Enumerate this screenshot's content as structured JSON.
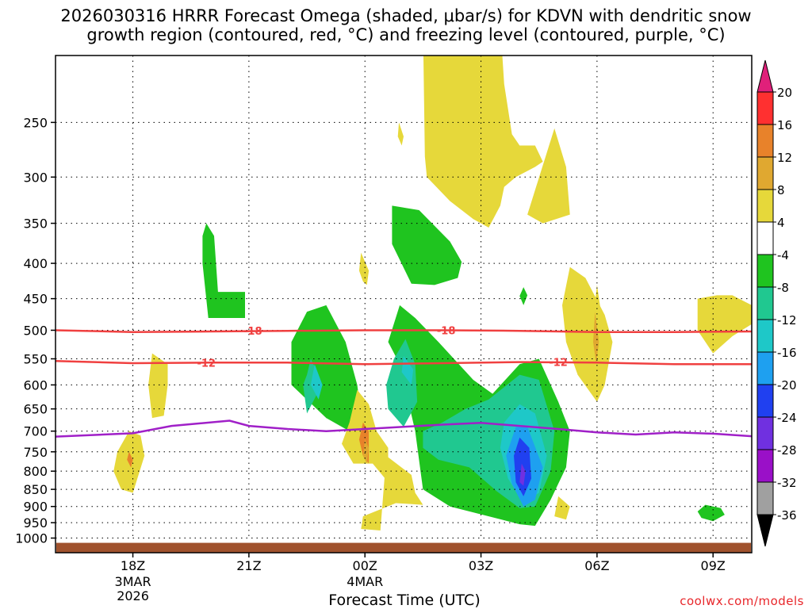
{
  "title": {
    "line1": "2026030316 HRRR Forecast Omega (shaded, μbar/s) for KDVN with dendritic snow",
    "line2": "growth region (contoured, red, °C) and freezing level (contoured, purple, °C)"
  },
  "chart_data": {
    "type": "time-height cross section",
    "xlabel": "Forecast Time (UTC)",
    "ylabel": "",
    "x_ticks": [
      {
        "hour": 2,
        "label": "18Z",
        "sub": [
          "3MAR",
          "2026"
        ]
      },
      {
        "hour": 5,
        "label": "21Z",
        "sub": []
      },
      {
        "hour": 8,
        "label": "00Z",
        "sub": [
          "4MAR"
        ]
      },
      {
        "hour": 11,
        "label": "03Z",
        "sub": []
      },
      {
        "hour": 14,
        "label": "06Z",
        "sub": []
      },
      {
        "hour": 17,
        "label": "09Z",
        "sub": []
      }
    ],
    "xlim_hours": [
      0,
      18
    ],
    "y_scale": "log-pressure",
    "ylim_hpa": [
      1050,
      200
    ],
    "y_ticks": [
      250,
      300,
      350,
      400,
      450,
      500,
      550,
      600,
      650,
      700,
      750,
      800,
      850,
      900,
      950,
      1000
    ],
    "grid": true,
    "surface_color": "#a0522d",
    "colorbar": {
      "labels": [
        20,
        16,
        12,
        8,
        4,
        -4,
        -8,
        -12,
        -16,
        -20,
        -24,
        -28,
        -32,
        -36
      ],
      "colors": [
        "#ff3030",
        "#e8822a",
        "#e0a830",
        "#e6d83a",
        "#ffffff",
        "#1fc41f",
        "#20c890",
        "#1ec8c8",
        "#1ea0f0",
        "#2040f0",
        "#7030e0",
        "#9a10c8",
        "#a0a0a0"
      ],
      "top_arrow_color": "#e0207a",
      "bottom_arrow_color": "#000000"
    },
    "series": [
      {
        "name": "-18",
        "color": "#f04040",
        "hours": [
          0,
          2,
          4,
          6,
          8,
          10,
          12,
          14,
          16,
          18
        ],
        "hpa": [
          500,
          503,
          502,
          501,
          500,
          500,
          501,
          503,
          503,
          502
        ]
      },
      {
        "name": "-12",
        "color": "#f04040",
        "hours": [
          0,
          2,
          4,
          6,
          8,
          10,
          12,
          14,
          16,
          18
        ],
        "hpa": [
          554,
          558,
          557,
          557,
          560,
          558,
          556,
          557,
          560,
          560
        ]
      },
      {
        "name": "",
        "color": "#a020c8",
        "hours": [
          0,
          2,
          3,
          4.5,
          5,
          6,
          7,
          8,
          9,
          10,
          11,
          12,
          13,
          14,
          15,
          16,
          17,
          18
        ],
        "hpa": [
          713,
          705,
          688,
          676,
          688,
          695,
          700,
          695,
          690,
          685,
          681,
          688,
          695,
          703,
          708,
          703,
          706,
          712
        ]
      }
    ],
    "contour_labels": [
      {
        "text": "-18",
        "hour": 5.1,
        "hpa": 501
      },
      {
        "text": "-18",
        "hour": 10.1,
        "hpa": 500
      },
      {
        "text": "-12",
        "hour": 3.9,
        "hpa": 557
      },
      {
        "text": "-12",
        "hour": 13.0,
        "hpa": 556
      }
    ],
    "shaded_regions": [
      {
        "color": "#1fc41f",
        "points": [
          [
            9.6,
            200
          ],
          [
            10.4,
            200
          ],
          [
            10.5,
            210
          ],
          [
            10.2,
            220
          ],
          [
            9.8,
            212
          ]
        ]
      },
      {
        "color": "#1fc41f",
        "points": [
          [
            3.9,
            350
          ],
          [
            4.1,
            365
          ],
          [
            4.2,
            440
          ],
          [
            4.9,
            440
          ],
          [
            4.9,
            480
          ],
          [
            3.95,
            480
          ],
          [
            3.8,
            400
          ],
          [
            3.8,
            365
          ]
        ]
      },
      {
        "color": "#1fc41f",
        "points": [
          [
            8.7,
            330
          ],
          [
            9.4,
            335
          ],
          [
            10.2,
            372
          ],
          [
            10.5,
            398
          ],
          [
            10.4,
            420
          ],
          [
            9.8,
            430
          ],
          [
            9.2,
            428
          ],
          [
            8.7,
            375
          ]
        ]
      },
      {
        "color": "#1fc41f",
        "points": [
          [
            6.5,
            470
          ],
          [
            7.0,
            460
          ],
          [
            7.5,
            520
          ],
          [
            7.8,
            600
          ],
          [
            7.9,
            660
          ],
          [
            7.6,
            700
          ],
          [
            7.0,
            670
          ],
          [
            6.1,
            600
          ],
          [
            6.1,
            520
          ]
        ]
      },
      {
        "color": "#1fc41f",
        "points": [
          [
            8.9,
            460
          ],
          [
            9.3,
            480
          ],
          [
            9.9,
            520
          ],
          [
            10.8,
            590
          ],
          [
            11.3,
            618
          ],
          [
            12.0,
            560
          ],
          [
            12.5,
            550
          ],
          [
            13.0,
            635
          ],
          [
            13.3,
            700
          ],
          [
            13.2,
            790
          ],
          [
            12.8,
            880
          ],
          [
            12.4,
            960
          ],
          [
            12.0,
            955
          ],
          [
            11.2,
            930
          ],
          [
            10.2,
            900
          ],
          [
            9.5,
            850
          ],
          [
            9.3,
            700
          ],
          [
            8.9,
            560
          ],
          [
            8.6,
            520
          ]
        ]
      },
      {
        "color": "#1fc41f",
        "points": [
          [
            12.1,
            433
          ],
          [
            12.2,
            445
          ],
          [
            12.1,
            460
          ],
          [
            12.0,
            446
          ]
        ]
      },
      {
        "color": "#1fc41f",
        "points": [
          [
            16.8,
            895
          ],
          [
            17.2,
            905
          ],
          [
            17.3,
            925
          ],
          [
            17.0,
            945
          ],
          [
            16.7,
            935
          ],
          [
            16.6,
            915
          ]
        ]
      },
      {
        "color": "#20c890",
        "points": [
          [
            9.05,
            515
          ],
          [
            9.3,
            560
          ],
          [
            9.35,
            635
          ],
          [
            9.0,
            690
          ],
          [
            8.6,
            650
          ],
          [
            8.55,
            600
          ],
          [
            8.75,
            550
          ]
        ]
      },
      {
        "color": "#20c890",
        "points": [
          [
            9.5,
            700
          ],
          [
            10.0,
            680
          ],
          [
            10.6,
            650
          ],
          [
            11.2,
            630
          ],
          [
            12.0,
            580
          ],
          [
            12.5,
            590
          ],
          [
            12.9,
            700
          ],
          [
            12.8,
            800
          ],
          [
            12.4,
            900
          ],
          [
            12.0,
            905
          ],
          [
            11.4,
            855
          ],
          [
            10.7,
            790
          ],
          [
            9.9,
            770
          ],
          [
            9.5,
            740
          ]
        ]
      },
      {
        "color": "#20c890",
        "points": [
          [
            6.6,
            550
          ],
          [
            6.8,
            580
          ],
          [
            6.75,
            620
          ],
          [
            6.5,
            660
          ],
          [
            6.4,
            600
          ],
          [
            6.5,
            580
          ]
        ]
      },
      {
        "color": "#1ec8c8",
        "points": [
          [
            9.0,
            545
          ],
          [
            9.25,
            570
          ],
          [
            9.2,
            600
          ],
          [
            8.95,
            575
          ]
        ]
      },
      {
        "color": "#1ec8c8",
        "points": [
          [
            6.7,
            560
          ],
          [
            6.9,
            600
          ],
          [
            6.8,
            630
          ],
          [
            6.6,
            600
          ]
        ]
      },
      {
        "color": "#1ec8c8",
        "points": [
          [
            11.6,
            680
          ],
          [
            12.0,
            640
          ],
          [
            12.4,
            660
          ],
          [
            12.7,
            760
          ],
          [
            12.5,
            860
          ],
          [
            12.1,
            890
          ],
          [
            11.7,
            820
          ],
          [
            11.5,
            740
          ]
        ]
      },
      {
        "color": "#1ea0f0",
        "points": [
          [
            11.9,
            690
          ],
          [
            12.2,
            690
          ],
          [
            12.6,
            790
          ],
          [
            12.4,
            880
          ],
          [
            12.1,
            900
          ],
          [
            11.8,
            835
          ],
          [
            11.65,
            760
          ]
        ]
      },
      {
        "color": "#2040f0",
        "points": [
          [
            12.0,
            715
          ],
          [
            12.25,
            740
          ],
          [
            12.3,
            820
          ],
          [
            12.1,
            870
          ],
          [
            11.9,
            830
          ],
          [
            11.85,
            760
          ]
        ]
      },
      {
        "color": "#7030e0",
        "points": [
          [
            12.05,
            780
          ],
          [
            12.15,
            800
          ],
          [
            12.1,
            840
          ],
          [
            12.0,
            830
          ]
        ]
      },
      {
        "color": "#e6d83a",
        "points": [
          [
            9.5,
            180
          ],
          [
            11.5,
            180
          ],
          [
            11.6,
            220
          ],
          [
            11.8,
            260
          ],
          [
            12.0,
            270
          ],
          [
            12.4,
            270
          ],
          [
            12.6,
            285
          ],
          [
            12.4,
            290
          ],
          [
            11.9,
            300
          ],
          [
            11.6,
            310
          ],
          [
            11.5,
            330
          ],
          [
            11.2,
            355
          ],
          [
            10.8,
            345
          ],
          [
            10.2,
            325
          ],
          [
            9.6,
            300
          ],
          [
            9.55,
            280
          ]
        ]
      },
      {
        "color": "#e6d83a",
        "points": [
          [
            12.9,
            255
          ],
          [
            13.2,
            290
          ],
          [
            13.3,
            340
          ],
          [
            12.6,
            350
          ],
          [
            12.2,
            340
          ]
        ]
      },
      {
        "color": "#e6d83a",
        "points": [
          [
            8.88,
            250
          ],
          [
            9.0,
            262
          ],
          [
            8.95,
            270
          ],
          [
            8.85,
            262
          ]
        ]
      },
      {
        "color": "#e6d83a",
        "points": [
          [
            7.9,
            386
          ],
          [
            8.1,
            410
          ],
          [
            8.05,
            430
          ],
          [
            7.95,
            425
          ],
          [
            7.85,
            410
          ]
        ]
      },
      {
        "color": "#e6d83a",
        "points": [
          [
            2.5,
            540
          ],
          [
            2.9,
            560
          ],
          [
            2.9,
            600
          ],
          [
            2.8,
            665
          ],
          [
            2.5,
            670
          ],
          [
            2.4,
            600
          ]
        ]
      },
      {
        "color": "#e6d83a",
        "points": [
          [
            1.9,
            700
          ],
          [
            2.2,
            710
          ],
          [
            2.3,
            760
          ],
          [
            2.0,
            860
          ],
          [
            1.7,
            850
          ],
          [
            1.5,
            800
          ],
          [
            1.6,
            750
          ]
        ]
      },
      {
        "color": "#e6d83a",
        "points": [
          [
            13.3,
            405
          ],
          [
            13.7,
            420
          ],
          [
            14.2,
            475
          ],
          [
            14.4,
            520
          ],
          [
            14.2,
            600
          ],
          [
            14.0,
            635
          ],
          [
            13.5,
            580
          ],
          [
            13.2,
            520
          ],
          [
            13.1,
            460
          ]
        ]
      },
      {
        "color": "#e6d83a",
        "points": [
          [
            16.6,
            450
          ],
          [
            17.1,
            445
          ],
          [
            17.5,
            445
          ],
          [
            18.0,
            460
          ],
          [
            18.0,
            490
          ],
          [
            17.5,
            510
          ],
          [
            17.0,
            540
          ],
          [
            16.6,
            500
          ]
        ]
      },
      {
        "color": "#e6d83a",
        "points": [
          [
            7.8,
            610
          ],
          [
            8.1,
            640
          ],
          [
            8.3,
            700
          ],
          [
            8.6,
            740
          ],
          [
            8.6,
            830
          ],
          [
            8.2,
            780
          ],
          [
            7.7,
            780
          ],
          [
            7.4,
            730
          ],
          [
            7.6,
            680
          ]
        ]
      },
      {
        "color": "#e6d83a",
        "points": [
          [
            8.55,
            760
          ],
          [
            9.2,
            810
          ],
          [
            9.3,
            860
          ],
          [
            9.5,
            895
          ],
          [
            8.8,
            890
          ],
          [
            7.95,
            930
          ],
          [
            7.9,
            970
          ],
          [
            8.4,
            975
          ]
        ]
      },
      {
        "color": "#e6d83a",
        "points": [
          [
            14.0,
            430
          ],
          [
            14.1,
            470
          ],
          [
            13.95,
            530
          ],
          [
            13.9,
            480
          ]
        ]
      },
      {
        "color": "#e6d83a",
        "points": [
          [
            13.0,
            870
          ],
          [
            13.3,
            900
          ],
          [
            13.2,
            940
          ],
          [
            12.9,
            930
          ]
        ]
      },
      {
        "color": "#e8822a",
        "points": [
          [
            7.95,
            680
          ],
          [
            8.1,
            700
          ],
          [
            8.1,
            780
          ],
          [
            7.95,
            760
          ],
          [
            7.85,
            720
          ]
        ]
      },
      {
        "color": "#e8822a",
        "points": [
          [
            1.9,
            750
          ],
          [
            2.0,
            770
          ],
          [
            1.95,
            790
          ],
          [
            1.85,
            770
          ]
        ]
      },
      {
        "color": "#e0a830",
        "points": [
          [
            13.95,
            470
          ],
          [
            14.05,
            520
          ],
          [
            13.98,
            560
          ],
          [
            13.9,
            520
          ]
        ]
      },
      {
        "color": "#e0a830",
        "points": [
          [
            8.0,
            720
          ],
          [
            8.1,
            740
          ],
          [
            8.05,
            780
          ],
          [
            7.95,
            760
          ]
        ]
      }
    ]
  },
  "credit": "coolwx.com/models"
}
